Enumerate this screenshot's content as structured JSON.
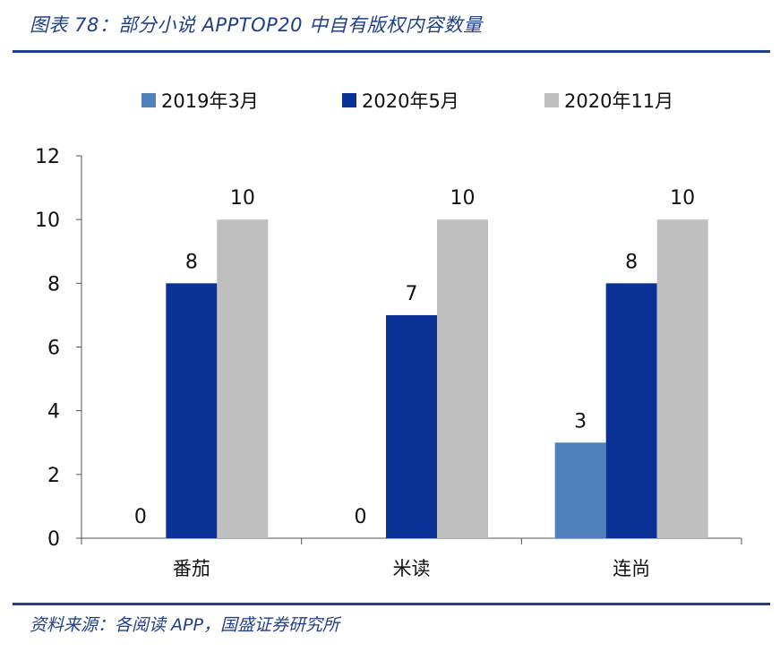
{
  "figure": {
    "title": "图表 78：部分小说 APPTOP20 中自有版权内容数量",
    "source": "资料来源：各阅读 APP，国盛证券研究所"
  },
  "chart_data": {
    "type": "bar",
    "categories": [
      "番茄",
      "米读",
      "连尚"
    ],
    "series": [
      {
        "name": "2019年3月",
        "values": [
          0,
          0,
          3
        ],
        "color": "#4f81bd"
      },
      {
        "name": "2020年5月",
        "values": [
          8,
          7,
          8
        ],
        "color": "#0a3296"
      },
      {
        "name": "2020年11月",
        "values": [
          10,
          10,
          10
        ],
        "color": "#bfbfbf"
      }
    ],
    "yticks": [
      0,
      2,
      4,
      6,
      8,
      10,
      12
    ],
    "ylim": [
      0,
      12
    ],
    "legend": "top",
    "grid": false,
    "data_labels": true
  }
}
